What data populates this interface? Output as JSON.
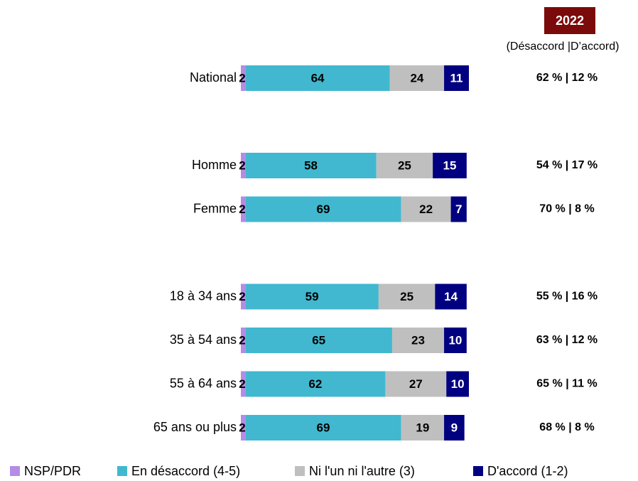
{
  "chart_data": {
    "type": "stacked-bar-horizontal",
    "categories": [
      "National",
      null,
      "Homme",
      "Femme",
      null,
      "18 à 34 ans",
      "35 à 54 ans",
      "55 à 64 ans",
      "65 ans ou plus"
    ],
    "series": [
      {
        "name": "NSP/PDR",
        "color": "#b48ce6",
        "label_color": "#000000",
        "values": [
          2,
          null,
          2,
          2,
          null,
          2,
          2,
          2,
          2
        ]
      },
      {
        "name": "En désaccord (4-5)",
        "color": "#41b8cf",
        "label_color": "#000000",
        "values": [
          64,
          null,
          58,
          69,
          null,
          59,
          65,
          62,
          69
        ]
      },
      {
        "name": "Ni l'un ni l'autre (3)",
        "color": "#bfbfbf",
        "label_color": "#000000",
        "values": [
          24,
          null,
          25,
          22,
          null,
          25,
          23,
          27,
          19
        ]
      },
      {
        "name": "D'accord (1-2)",
        "color": "#000080",
        "label_color": "#ffffff",
        "values": [
          11,
          null,
          15,
          7,
          null,
          14,
          10,
          10,
          9
        ]
      }
    ],
    "side_column": {
      "title": "2022",
      "title_color": "#7b0a0a",
      "subtitle": "(Désaccord |D’accord)",
      "values": [
        "62 % | 12 %",
        null,
        "54 % | 17 %",
        "70 % | 8 %",
        null,
        "55 % | 16 %",
        "63 % | 12 %",
        "65 % | 11 %",
        "68 % | 8 %"
      ]
    },
    "legend": "bottom"
  }
}
